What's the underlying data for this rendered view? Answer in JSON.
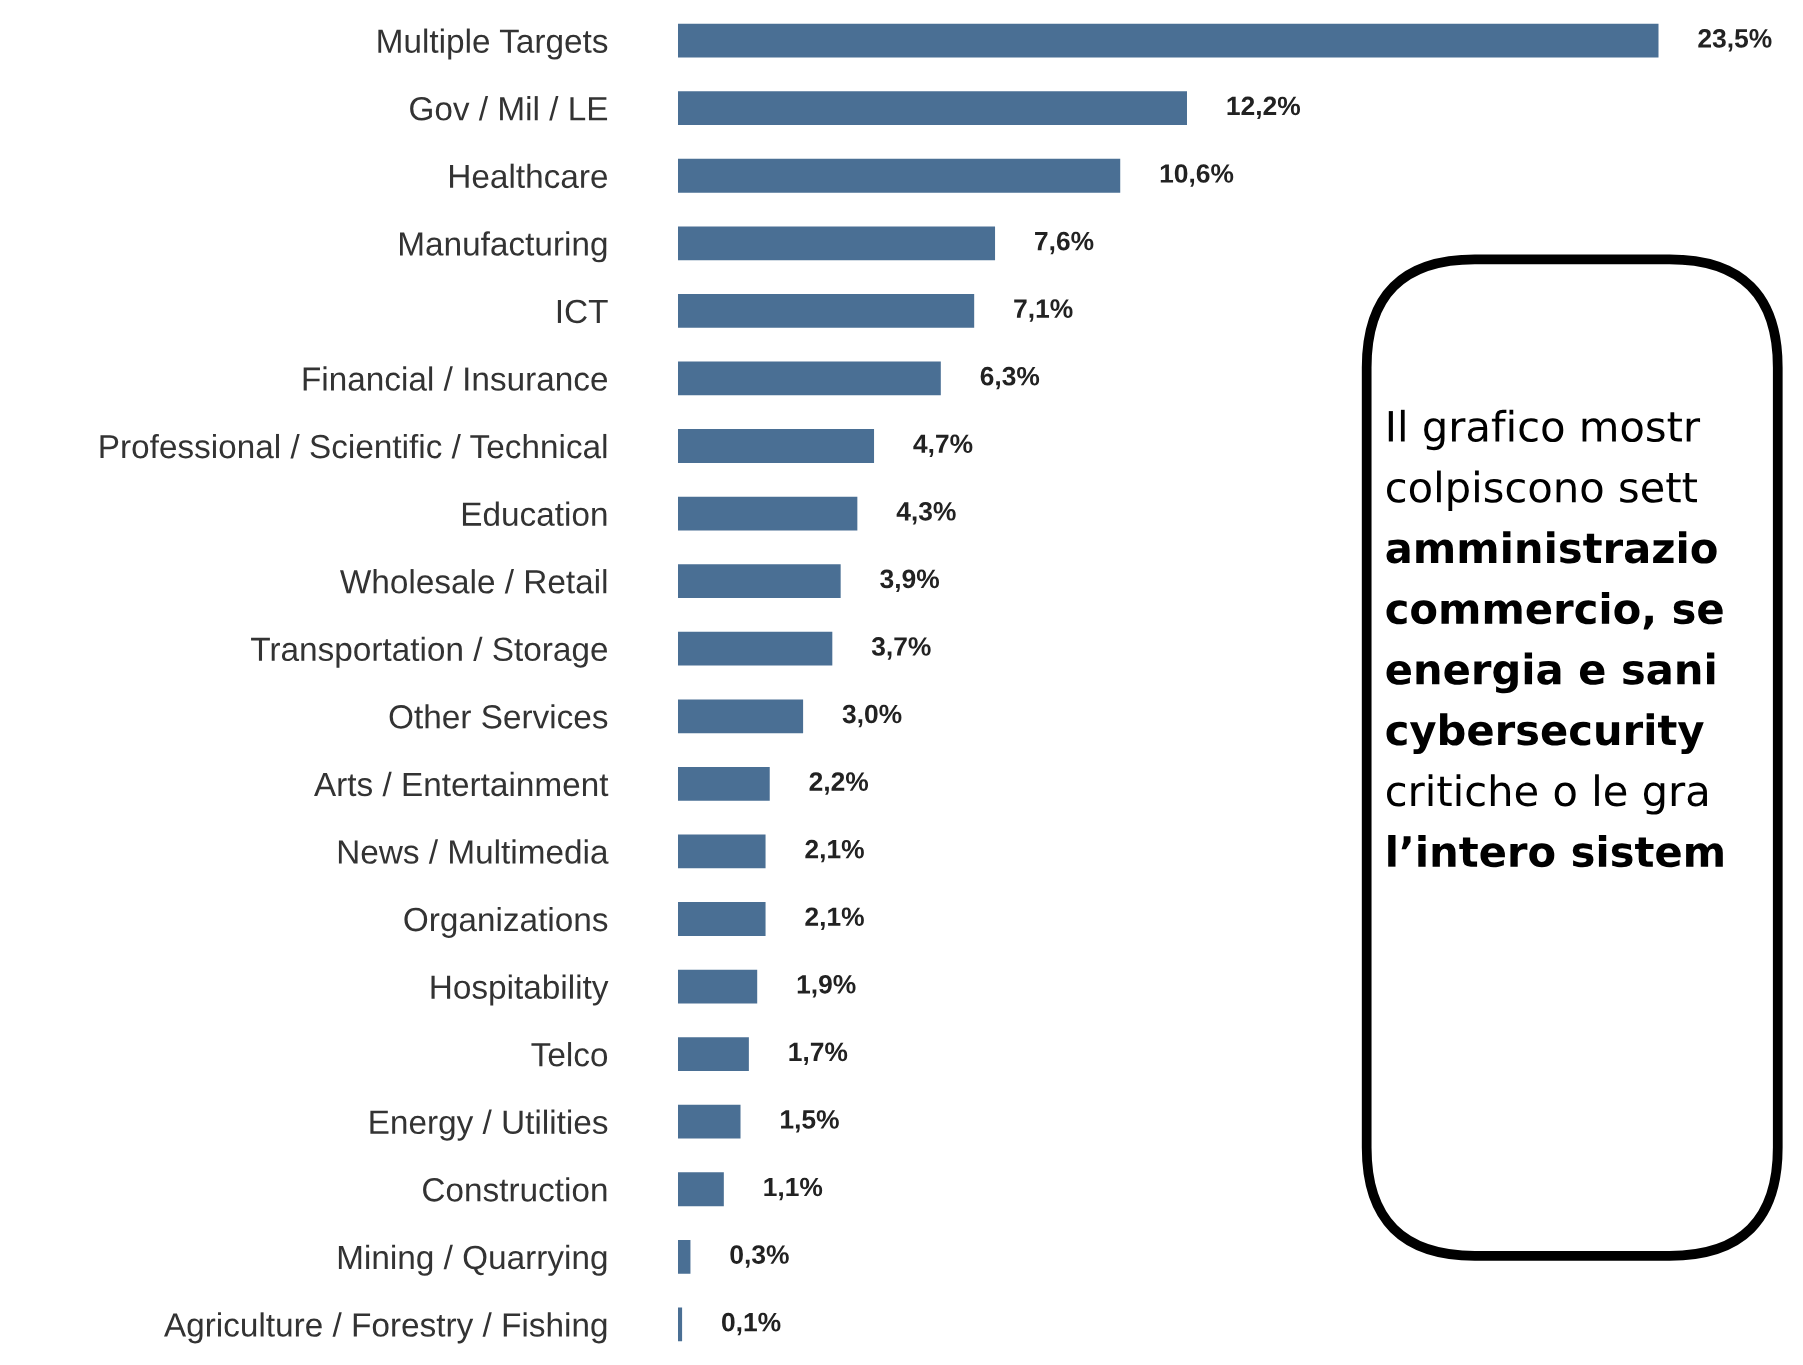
{
  "chart_data": {
    "type": "bar",
    "orientation": "horizontal",
    "color": "#4a6f94",
    "grid": false,
    "legend": false,
    "tick_labels": "y",
    "categories": [
      "Multiple Targets",
      "Gov / Mil / LE",
      "Healthcare",
      "Manufacturing",
      "ICT",
      "Financial / Insurance",
      "Professional / Scientific / Technical",
      "Education",
      "Wholesale / Retail",
      "Transportation / Storage",
      "Other Services",
      "Arts / Entertainment",
      "News / Multimedia",
      "Organizations",
      "Hospitability",
      "Telco",
      "Energy / Utilities",
      "Construction",
      "Mining / Quarrying",
      "Agriculture / Forestry / Fishing"
    ],
    "values": [
      23.5,
      12.2,
      10.6,
      7.6,
      7.1,
      6.3,
      4.7,
      4.3,
      3.9,
      3.7,
      3.0,
      2.2,
      2.1,
      2.1,
      1.9,
      1.7,
      1.5,
      1.1,
      0.3,
      0.1
    ],
    "value_labels": [
      "23,5%",
      "12,2%",
      "10,6%",
      "7,6%",
      "7,1%",
      "6,3%",
      "4,7%",
      "4,3%",
      "3,9%",
      "3,7%",
      "3,0%",
      "2,2%",
      "2,1%",
      "2,1%",
      "1,9%",
      "1,7%",
      "1,5%",
      "1,1%",
      "0,3%",
      "0,1%"
    ],
    "annotations": [
      "Il grafico mostr",
      "colpiscono sett",
      "amministrazio",
      "commercio, se",
      "energia e sani",
      "cybersecurity",
      "critiche o le gra",
      "l’intero sistem"
    ]
  }
}
